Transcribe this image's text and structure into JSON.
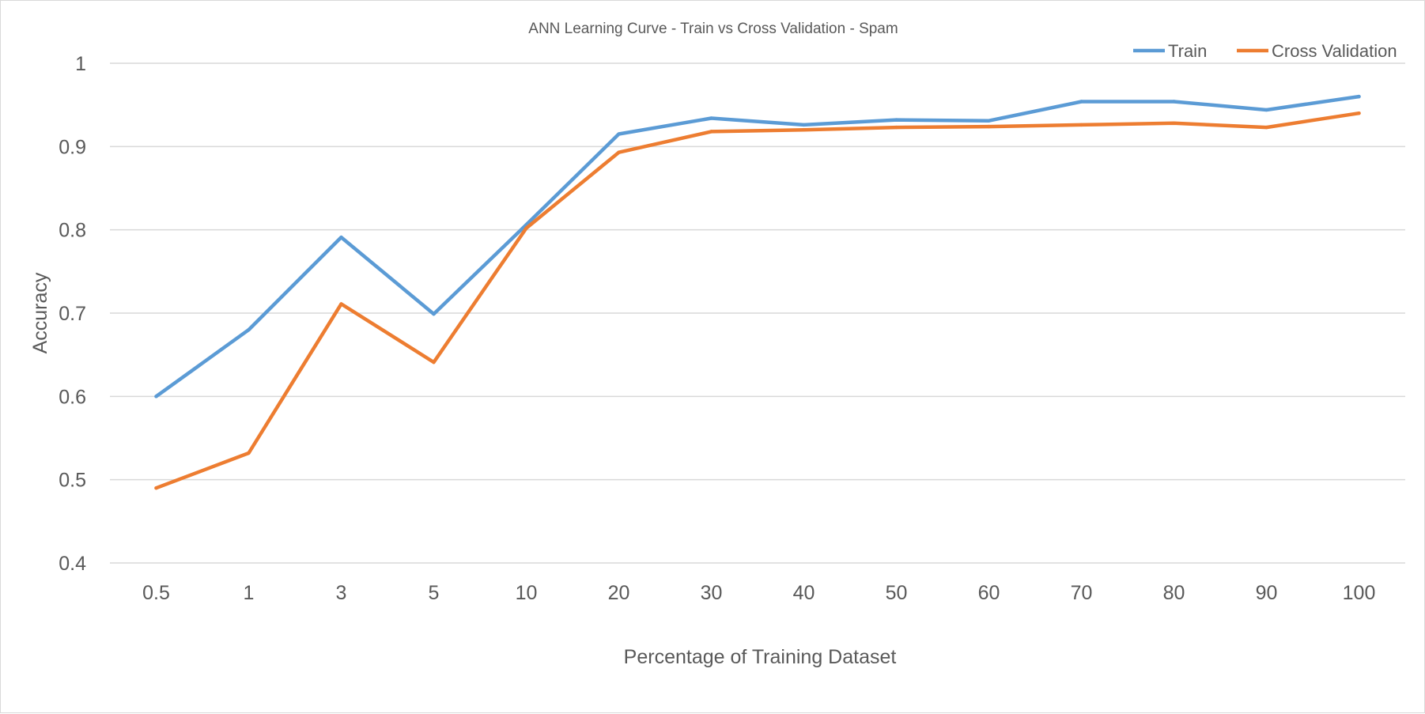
{
  "chart_data": {
    "type": "line",
    "title": "ANN Learning Curve - Train vs Cross Validation - Spam",
    "xlabel": "Percentage of Training Dataset",
    "ylabel": "Accuracy",
    "categories": [
      "0.5",
      "1",
      "3",
      "5",
      "10",
      "20",
      "30",
      "40",
      "50",
      "60",
      "70",
      "80",
      "90",
      "100"
    ],
    "ylim": [
      0.4,
      1.0
    ],
    "yticks": [
      "0.4",
      "0.5",
      "0.6",
      "0.7",
      "0.8",
      "0.9",
      "1"
    ],
    "grid": true,
    "legend_position": "top-right",
    "series": [
      {
        "name": "Train",
        "color": "#5b9bd5",
        "values": [
          0.6,
          0.68,
          0.791,
          0.699,
          0.806,
          0.915,
          0.934,
          0.926,
          0.932,
          0.931,
          0.954,
          0.954,
          0.944,
          0.96
        ]
      },
      {
        "name": "Cross Validation",
        "color": "#ed7d31",
        "values": [
          0.49,
          0.532,
          0.711,
          0.641,
          0.802,
          0.893,
          0.918,
          0.92,
          0.923,
          0.924,
          0.926,
          0.928,
          0.923,
          0.94
        ]
      }
    ]
  }
}
